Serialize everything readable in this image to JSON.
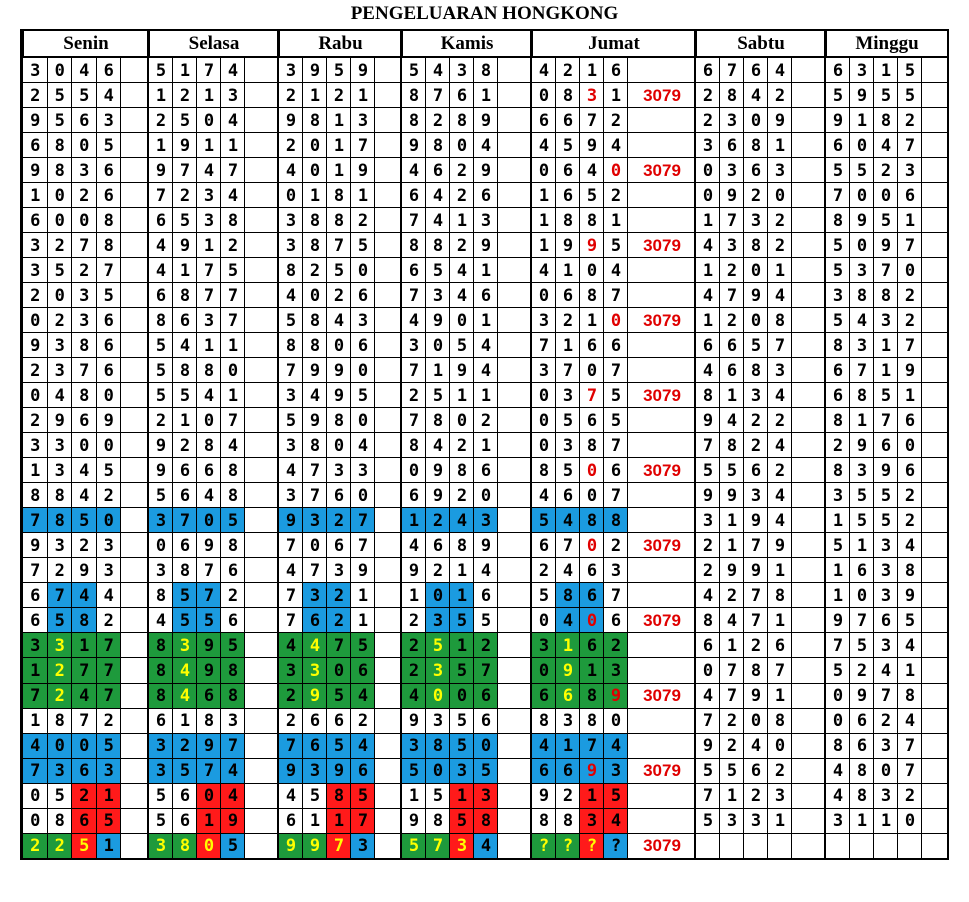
{
  "title": "PENGELUARAN HONGKONG",
  "days": [
    "Senin",
    "Selasa",
    "Rabu",
    "Kamis",
    "Jumat",
    "Sabtu",
    "Minggu"
  ],
  "colors": {
    "blue": "#1b9be0",
    "green": "#1e9a3c",
    "red": "#ff1a1a",
    "yellow_digit": "#ffff00",
    "red_digit": "#e00000",
    "black": "#000000"
  },
  "rows": [
    {
      "senin": "3046",
      "selasa": "5174",
      "rabu": "3959",
      "kamis": "5438",
      "jumat": "4216",
      "note": "",
      "sabtu": "6764",
      "minggu": "6315"
    },
    {
      "senin": "2554",
      "selasa": "1213",
      "rabu": "2121",
      "kamis": "8761",
      "jumat": "0831",
      "note": "3079",
      "sabtu": "2842",
      "minggu": "5955",
      "jr": [
        2
      ]
    },
    {
      "senin": "9563",
      "selasa": "2504",
      "rabu": "9813",
      "kamis": "8289",
      "jumat": "6672",
      "note": "",
      "sabtu": "2309",
      "minggu": "9182"
    },
    {
      "senin": "6805",
      "selasa": "1911",
      "rabu": "2017",
      "kamis": "9804",
      "jumat": "4594",
      "note": "",
      "sabtu": "3681",
      "minggu": "6047"
    },
    {
      "senin": "9836",
      "selasa": "9747",
      "rabu": "4019",
      "kamis": "4629",
      "jumat": "0640",
      "note": "3079",
      "sabtu": "0363",
      "minggu": "5523",
      "jr": [
        3
      ]
    },
    {
      "senin": "1026",
      "selasa": "7234",
      "rabu": "0181",
      "kamis": "6426",
      "jumat": "1652",
      "note": "",
      "sabtu": "0920",
      "minggu": "7006"
    },
    {
      "senin": "6008",
      "selasa": "6538",
      "rabu": "3882",
      "kamis": "7413",
      "jumat": "1881",
      "note": "",
      "sabtu": "1732",
      "minggu": "8951"
    },
    {
      "senin": "3278",
      "selasa": "4912",
      "rabu": "3875",
      "kamis": "8829",
      "jumat": "1995",
      "note": "3079",
      "sabtu": "4382",
      "minggu": "5097",
      "jr": [
        2
      ]
    },
    {
      "senin": "3527",
      "selasa": "4175",
      "rabu": "8250",
      "kamis": "6541",
      "jumat": "4104",
      "note": "",
      "sabtu": "1201",
      "minggu": "5370"
    },
    {
      "senin": "2035",
      "selasa": "6877",
      "rabu": "4026",
      "kamis": "7346",
      "jumat": "0687",
      "note": "",
      "sabtu": "4794",
      "minggu": "3882"
    },
    {
      "senin": "0236",
      "selasa": "8637",
      "rabu": "5843",
      "kamis": "4901",
      "jumat": "3210",
      "note": "3079",
      "sabtu": "1208",
      "minggu": "5432",
      "jr": [
        3
      ]
    },
    {
      "senin": "9386",
      "selasa": "5411",
      "rabu": "8806",
      "kamis": "3054",
      "jumat": "7166",
      "note": "",
      "sabtu": "6657",
      "minggu": "8317"
    },
    {
      "senin": "2376",
      "selasa": "5880",
      "rabu": "7990",
      "kamis": "7194",
      "jumat": "3707",
      "note": "",
      "sabtu": "4683",
      "minggu": "6719"
    },
    {
      "senin": "0480",
      "selasa": "5541",
      "rabu": "3495",
      "kamis": "2511",
      "jumat": "0375",
      "note": "3079",
      "sabtu": "8134",
      "minggu": "6851",
      "jr": [
        2
      ]
    },
    {
      "senin": "2969",
      "selasa": "2107",
      "rabu": "5980",
      "kamis": "7802",
      "jumat": "0565",
      "note": "",
      "sabtu": "9422",
      "minggu": "8176"
    },
    {
      "senin": "3300",
      "selasa": "9284",
      "rabu": "3804",
      "kamis": "8421",
      "jumat": "0387",
      "note": "",
      "sabtu": "7824",
      "minggu": "2960"
    },
    {
      "senin": "1345",
      "selasa": "9668",
      "rabu": "4733",
      "kamis": "0986",
      "jumat": "8506",
      "note": "3079",
      "sabtu": "5562",
      "minggu": "8396",
      "jr": [
        2
      ]
    },
    {
      "senin": "8842",
      "selasa": "5648",
      "rabu": "3760",
      "kamis": "6920",
      "jumat": "4607",
      "note": "",
      "sabtu": "9934",
      "minggu": "3552"
    },
    {
      "senin": "7850",
      "selasa": "3705",
      "rabu": "9327",
      "kamis": "1243",
      "jumat": "5488",
      "note": "",
      "sabtu": "3194",
      "minggu": "1552",
      "hl": "blue",
      "hlc": [
        0,
        1,
        2,
        3
      ]
    },
    {
      "senin": "9323",
      "selasa": "0698",
      "rabu": "7067",
      "kamis": "4689",
      "jumat": "6702",
      "note": "3079",
      "sabtu": "2179",
      "minggu": "5134",
      "jr": [
        2
      ]
    },
    {
      "senin": "7293",
      "selasa": "3876",
      "rabu": "4739",
      "kamis": "9214",
      "jumat": "2463",
      "note": "",
      "sabtu": "2991",
      "minggu": "1638"
    },
    {
      "senin": "6744",
      "selasa": "8572",
      "rabu": "7321",
      "kamis": "1016",
      "jumat": "5867",
      "note": "",
      "sabtu": "4278",
      "minggu": "1039",
      "hl": "blue",
      "hlc": [
        1,
        2
      ]
    },
    {
      "senin": "6582",
      "selasa": "4556",
      "rabu": "7621",
      "kamis": "2355",
      "jumat": "0406",
      "note": "3079",
      "sabtu": "8471",
      "minggu": "9765",
      "hl": "blue",
      "hlc": [
        1,
        2
      ],
      "jr": [
        2
      ]
    },
    {
      "senin": "3317",
      "selasa": "8395",
      "rabu": "4475",
      "kamis": "2512",
      "jumat": "3162",
      "note": "",
      "sabtu": "6126",
      "minggu": "7534",
      "hl": "green",
      "hlc": [
        0,
        1,
        2,
        3
      ],
      "yl": [
        1
      ]
    },
    {
      "senin": "1277",
      "selasa": "8498",
      "rabu": "3306",
      "kamis": "2357",
      "jumat": "0913",
      "note": "",
      "sabtu": "0787",
      "minggu": "5241",
      "hl": "green",
      "hlc": [
        0,
        1,
        2,
        3
      ],
      "yl": [
        1
      ]
    },
    {
      "senin": "7247",
      "selasa": "8468",
      "rabu": "2954",
      "kamis": "4006",
      "jumat": "6689",
      "note": "3079",
      "sabtu": "4791",
      "minggu": "0978",
      "hl": "green",
      "hlc": [
        0,
        1,
        2,
        3
      ],
      "yl": [
        1
      ],
      "jr": [
        3
      ]
    },
    {
      "senin": "1872",
      "selasa": "6183",
      "rabu": "2662",
      "kamis": "9356",
      "jumat": "8380",
      "note": "",
      "sabtu": "7208",
      "minggu": "0624"
    },
    {
      "senin": "4005",
      "selasa": "3297",
      "rabu": "7654",
      "kamis": "3850",
      "jumat": "4174",
      "note": "",
      "sabtu": "9240",
      "minggu": "8637",
      "hl": "blue",
      "hlc": [
        0,
        1,
        2,
        3
      ]
    },
    {
      "senin": "7363",
      "selasa": "3574",
      "rabu": "9396",
      "kamis": "5035",
      "jumat": "6693",
      "note": "3079",
      "sabtu": "5562",
      "minggu": "4807",
      "hl": "blue",
      "hlc": [
        0,
        1,
        2,
        3
      ],
      "jr": [
        2
      ]
    },
    {
      "senin": "0521",
      "selasa": "5604",
      "rabu": "4585",
      "kamis": "1513",
      "jumat": "9215",
      "note": "",
      "sabtu": "7123",
      "minggu": "4832",
      "hl": "red",
      "hlc": [
        2,
        3
      ]
    },
    {
      "senin": "0865",
      "selasa": "5619",
      "rabu": "6117",
      "kamis": "9858",
      "jumat": "8834",
      "note": "",
      "sabtu": "5331",
      "minggu": "3110",
      "hl": "red",
      "hlc": [
        2,
        3
      ]
    },
    {
      "senin": "2251",
      "selasa": "3805",
      "rabu": "9973",
      "kamis": "5734",
      "jumat": "????",
      "note": "3079",
      "sabtu": "",
      "minggu": "",
      "hl": "last"
    }
  ]
}
